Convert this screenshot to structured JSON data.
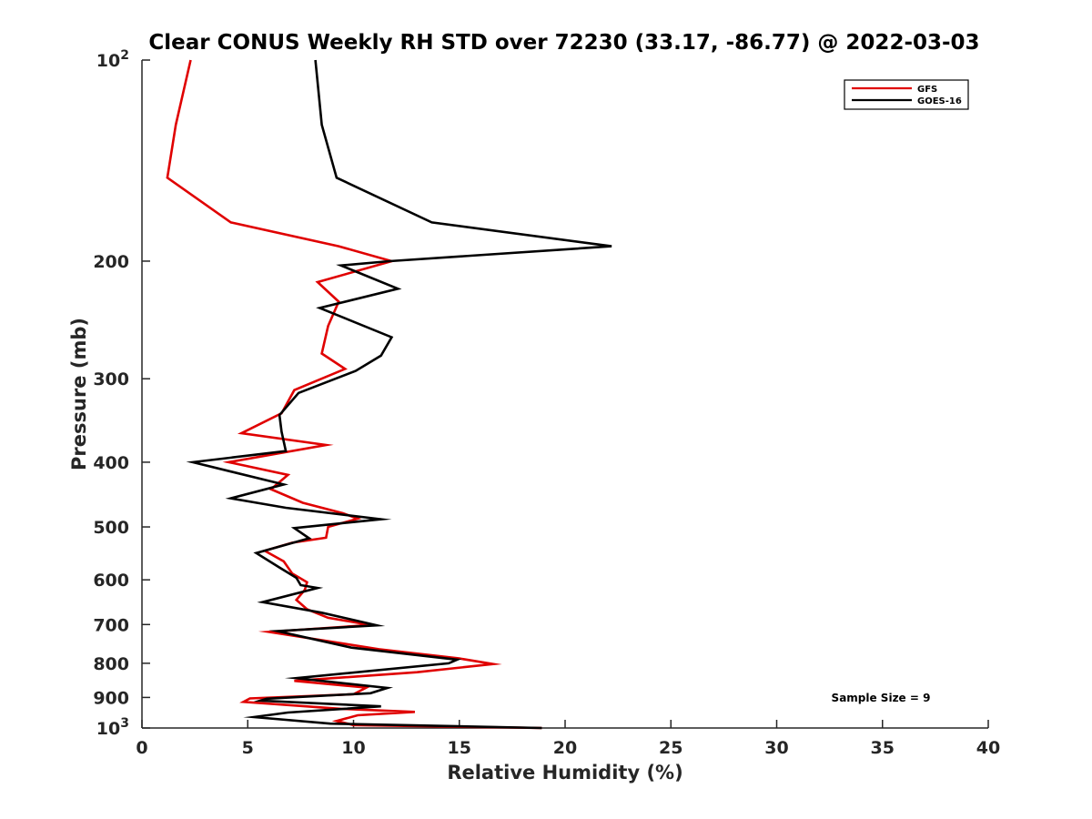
{
  "chart_data": {
    "type": "line",
    "title": "Clear CONUS Weekly RH STD over 72230 (33.17, -86.77) @ 2022-03-03",
    "xlabel": "Relative Humidity (%)",
    "ylabel": "Pressure (mb)",
    "xlim": [
      0,
      40
    ],
    "ylim": [
      100,
      1000
    ],
    "yscale": "log",
    "y_reversed": true,
    "x_ticks": [
      0,
      5,
      10,
      15,
      20,
      25,
      30,
      35,
      40
    ],
    "x_tick_labels": [
      "0",
      "5",
      "10",
      "15",
      "20",
      "25",
      "30",
      "35",
      "40"
    ],
    "y_ticks": [
      100,
      200,
      300,
      400,
      500,
      600,
      700,
      800,
      900,
      1000
    ],
    "y_tick_labels": [
      {
        "base": "10",
        "exp": "2"
      },
      {
        "base": "200",
        "exp": ""
      },
      {
        "base": "300",
        "exp": ""
      },
      {
        "base": "400",
        "exp": ""
      },
      {
        "base": "500",
        "exp": ""
      },
      {
        "base": "600",
        "exp": ""
      },
      {
        "base": "700",
        "exp": ""
      },
      {
        "base": "800",
        "exp": ""
      },
      {
        "base": "900",
        "exp": ""
      },
      {
        "base": "10",
        "exp": "3"
      }
    ],
    "legend_position": "top-right",
    "annotation": "Sample Size = 9",
    "series": [
      {
        "name": "GFS",
        "color": "#e00000",
        "points": [
          [
            2.3,
            100
          ],
          [
            1.6,
            125
          ],
          [
            1.2,
            150
          ],
          [
            4.2,
            175
          ],
          [
            9.3,
            190
          ],
          [
            11.8,
            200
          ],
          [
            8.3,
            215
          ],
          [
            9.3,
            230
          ],
          [
            8.8,
            250
          ],
          [
            8.5,
            275
          ],
          [
            9.6,
            290
          ],
          [
            7.2,
            312
          ],
          [
            6.6,
            338
          ],
          [
            4.7,
            362
          ],
          [
            8.7,
            377
          ],
          [
            4.1,
            400
          ],
          [
            6.9,
            418
          ],
          [
            6.1,
            439
          ],
          [
            7.6,
            460
          ],
          [
            9.5,
            477
          ],
          [
            10.2,
            486
          ],
          [
            8.8,
            500
          ],
          [
            8.7,
            519
          ],
          [
            7.1,
            528
          ],
          [
            5.8,
            543
          ],
          [
            6.7,
            563
          ],
          [
            7.1,
            587
          ],
          [
            7.8,
            605
          ],
          [
            7.7,
            621
          ],
          [
            7.3,
            643
          ],
          [
            7.8,
            664
          ],
          [
            8.8,
            684
          ],
          [
            10.8,
            701
          ],
          [
            6.0,
            718
          ],
          [
            11.2,
            762
          ],
          [
            15.0,
            787
          ],
          [
            16.6,
            802
          ],
          [
            13.0,
            825
          ],
          [
            7.2,
            850
          ],
          [
            10.6,
            870
          ],
          [
            10.0,
            890
          ],
          [
            5.1,
            903
          ],
          [
            4.8,
            914
          ],
          [
            9.4,
            936
          ],
          [
            12.9,
            946
          ],
          [
            10.2,
            957
          ],
          [
            9.2,
            976
          ],
          [
            10.0,
            990
          ],
          [
            18.9,
            1000
          ]
        ]
      },
      {
        "name": "GOES-16",
        "color": "#000000",
        "points": [
          [
            8.2,
            100
          ],
          [
            8.5,
            125
          ],
          [
            9.2,
            150
          ],
          [
            13.7,
            175
          ],
          [
            22.2,
            190
          ],
          [
            11.7,
            200
          ],
          [
            9.4,
            203
          ],
          [
            12.1,
            220
          ],
          [
            8.4,
            235
          ],
          [
            11.8,
            260
          ],
          [
            11.3,
            277
          ],
          [
            10.1,
            292
          ],
          [
            7.4,
            315
          ],
          [
            6.5,
            340
          ],
          [
            6.6,
            360
          ],
          [
            6.8,
            385
          ],
          [
            2.4,
            400
          ],
          [
            6.7,
            432
          ],
          [
            4.2,
            453
          ],
          [
            6.8,
            468
          ],
          [
            11.3,
            487
          ],
          [
            7.2,
            502
          ],
          [
            7.9,
            520
          ],
          [
            5.4,
            547
          ],
          [
            6.5,
            575
          ],
          [
            7.3,
            596
          ],
          [
            7.5,
            611
          ],
          [
            8.3,
            617
          ],
          [
            5.7,
            648
          ],
          [
            8.5,
            672
          ],
          [
            11.1,
            702
          ],
          [
            6.4,
            716
          ],
          [
            9.9,
            758
          ],
          [
            14.9,
            790
          ],
          [
            14.5,
            800
          ],
          [
            7.3,
            842
          ],
          [
            11.6,
            871
          ],
          [
            10.8,
            887
          ],
          [
            5.9,
            904
          ],
          [
            5.6,
            910
          ],
          [
            11.3,
            928
          ],
          [
            6.9,
            948
          ],
          [
            5.3,
            963
          ],
          [
            8.9,
            985
          ],
          [
            18.9,
            1000
          ]
        ]
      }
    ]
  }
}
